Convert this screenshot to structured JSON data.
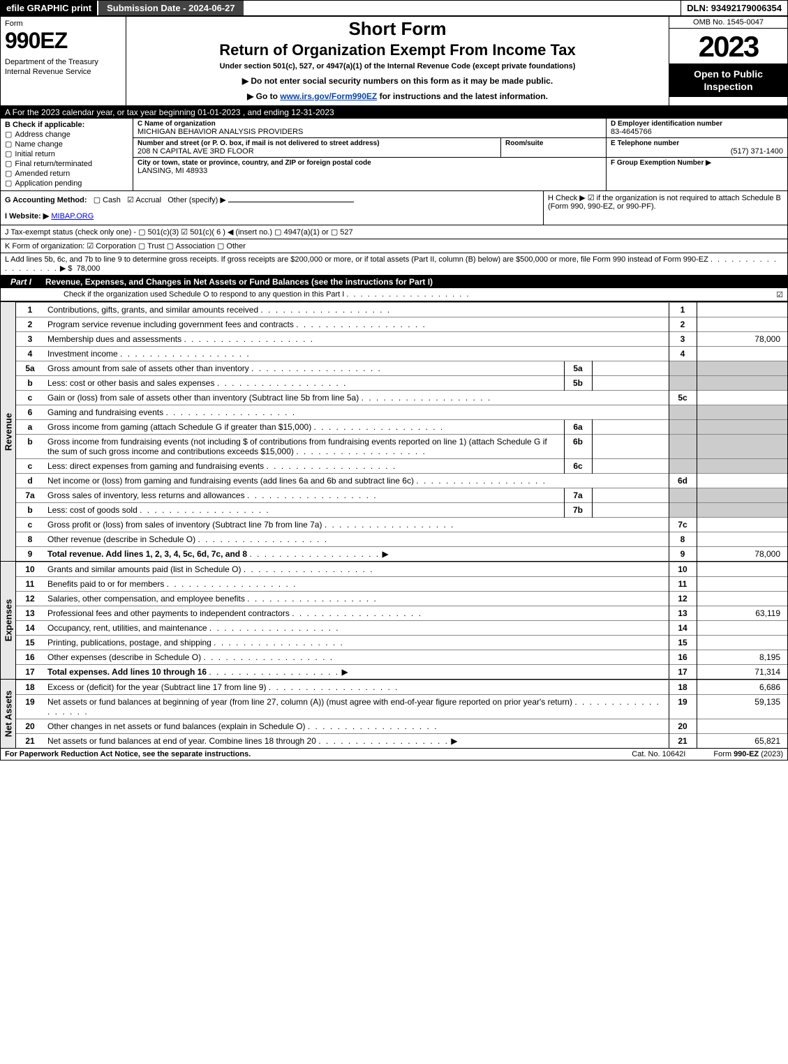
{
  "colors": {
    "black": "#000000",
    "white": "#ffffff",
    "grey_fill": "#cccccc",
    "link": "#0645ad"
  },
  "topbar": {
    "efile": "efile GRAPHIC print",
    "submission": "Submission Date - 2024-06-27",
    "dln": "DLN: 93492179006354"
  },
  "header": {
    "form_word": "Form",
    "form_no": "990EZ",
    "dept": "Department of the Treasury\nInternal Revenue Service",
    "short": "Short Form",
    "title": "Return of Organization Exempt From Income Tax",
    "sub": "Under section 501(c), 527, or 4947(a)(1) of the Internal Revenue Code (except private foundations)",
    "arrow1": "▶ Do not enter social security numbers on this form as it may be made public.",
    "arrow2_pre": "▶ Go to ",
    "arrow2_link": "www.irs.gov/Form990EZ",
    "arrow2_post": " for instructions and the latest information.",
    "omb": "OMB No. 1545-0047",
    "year": "2023",
    "public": "Open to Public Inspection"
  },
  "row_a": "A  For the 2023 calendar year, or tax year beginning 01-01-2023 , and ending 12-31-2023",
  "box_b": {
    "head": "B  Check if applicable:",
    "opts": [
      "Address change",
      "Name change",
      "Initial return",
      "Final return/terminated",
      "Amended return",
      "Application pending"
    ]
  },
  "box_c": {
    "head": "C Name of organization",
    "name": "MICHIGAN BEHAVIOR ANALYSIS PROVIDERS",
    "street_head": "Number and street (or P. O. box, if mail is not delivered to street address)",
    "street": "208 N CAPITAL AVE 3RD FLOOR",
    "room_head": "Room/suite",
    "city_head": "City or town, state or province, country, and ZIP or foreign postal code",
    "city": "LANSING, MI  48933"
  },
  "box_d": {
    "head": "D Employer identification number",
    "val": "83-4645766"
  },
  "box_e": {
    "head": "E Telephone number",
    "val": "(517) 371-1400"
  },
  "box_f": {
    "head": "F Group Exemption Number  ▶",
    "val": ""
  },
  "row_g": {
    "label": "G Accounting Method:",
    "cash": "Cash",
    "accrual": "Accrual",
    "other": "Other (specify) ▶",
    "accrual_checked": true
  },
  "row_h": {
    "text": "H  Check ▶ ☑ if the organization is not required to attach Schedule B (Form 990, 990-EZ, or 990-PF)."
  },
  "row_i": {
    "label": "I Website: ▶",
    "val": "MIBAP.ORG"
  },
  "row_j": "J Tax-exempt status (check only one) -  ▢ 501(c)(3)  ☑ 501(c)( 6 ) ◀ (insert no.)  ▢ 4947(a)(1) or  ▢ 527",
  "row_k": "K Form of organization:  ☑ Corporation  ▢ Trust  ▢ Association  ▢ Other",
  "row_l": {
    "text": "L Add lines 5b, 6c, and 7b to line 9 to determine gross receipts. If gross receipts are $200,000 or more, or if total assets (Part II, column (B) below) are $500,000 or more, file Form 990 instead of Form 990-EZ",
    "arrow": "▶ $",
    "val": "78,000"
  },
  "part1": {
    "name": "Part I",
    "title": "Revenue, Expenses, and Changes in Net Assets or Fund Balances (see the instructions for Part I)",
    "sub": "Check if the organization used Schedule O to respond to any question in this Part I",
    "checked": true
  },
  "sections": {
    "revenue": {
      "label": "Revenue",
      "rows": [
        {
          "ln": "1",
          "desc": "Contributions, gifts, grants, and similar amounts received",
          "no": "1",
          "val": ""
        },
        {
          "ln": "2",
          "desc": "Program service revenue including government fees and contracts",
          "no": "2",
          "val": ""
        },
        {
          "ln": "3",
          "desc": "Membership dues and assessments",
          "no": "3",
          "val": "78,000"
        },
        {
          "ln": "4",
          "desc": "Investment income",
          "no": "4",
          "val": ""
        },
        {
          "ln": "5a",
          "desc": "Gross amount from sale of assets other than inventory",
          "subno": "5a",
          "subval": "",
          "grey": true
        },
        {
          "ln": "b",
          "desc": "Less: cost or other basis and sales expenses",
          "subno": "5b",
          "subval": "",
          "grey": true
        },
        {
          "ln": "c",
          "desc": "Gain or (loss) from sale of assets other than inventory (Subtract line 5b from line 5a)",
          "no": "5c",
          "val": ""
        },
        {
          "ln": "6",
          "desc": "Gaming and fundraising events",
          "grey": true
        },
        {
          "ln": "a",
          "desc": "Gross income from gaming (attach Schedule G if greater than $15,000)",
          "subno": "6a",
          "subval": "",
          "grey": true
        },
        {
          "ln": "b",
          "desc": "Gross income from fundraising events (not including $                     of contributions from fundraising events reported on line 1) (attach Schedule G if the sum of such gross income and contributions exceeds $15,000)",
          "subno": "6b",
          "subval": "",
          "grey": true
        },
        {
          "ln": "c",
          "desc": "Less: direct expenses from gaming and fundraising events",
          "subno": "6c",
          "subval": "",
          "grey": true
        },
        {
          "ln": "d",
          "desc": "Net income or (loss) from gaming and fundraising events (add lines 6a and 6b and subtract line 6c)",
          "no": "6d",
          "val": ""
        },
        {
          "ln": "7a",
          "desc": "Gross sales of inventory, less returns and allowances",
          "subno": "7a",
          "subval": "",
          "grey": true
        },
        {
          "ln": "b",
          "desc": "Less: cost of goods sold",
          "subno": "7b",
          "subval": "",
          "grey": true
        },
        {
          "ln": "c",
          "desc": "Gross profit or (loss) from sales of inventory (Subtract line 7b from line 7a)",
          "no": "7c",
          "val": ""
        },
        {
          "ln": "8",
          "desc": "Other revenue (describe in Schedule O)",
          "no": "8",
          "val": ""
        },
        {
          "ln": "9",
          "desc": "Total revenue. Add lines 1, 2, 3, 4, 5c, 6d, 7c, and 8",
          "no": "9",
          "val": "78,000",
          "bold": true,
          "arrow": true
        }
      ]
    },
    "expenses": {
      "label": "Expenses",
      "rows": [
        {
          "ln": "10",
          "desc": "Grants and similar amounts paid (list in Schedule O)",
          "no": "10",
          "val": ""
        },
        {
          "ln": "11",
          "desc": "Benefits paid to or for members",
          "no": "11",
          "val": ""
        },
        {
          "ln": "12",
          "desc": "Salaries, other compensation, and employee benefits",
          "no": "12",
          "val": ""
        },
        {
          "ln": "13",
          "desc": "Professional fees and other payments to independent contractors",
          "no": "13",
          "val": "63,119"
        },
        {
          "ln": "14",
          "desc": "Occupancy, rent, utilities, and maintenance",
          "no": "14",
          "val": ""
        },
        {
          "ln": "15",
          "desc": "Printing, publications, postage, and shipping",
          "no": "15",
          "val": ""
        },
        {
          "ln": "16",
          "desc": "Other expenses (describe in Schedule O)",
          "no": "16",
          "val": "8,195"
        },
        {
          "ln": "17",
          "desc": "Total expenses. Add lines 10 through 16",
          "no": "17",
          "val": "71,314",
          "bold": true,
          "arrow": true
        }
      ]
    },
    "netassets": {
      "label": "Net Assets",
      "rows": [
        {
          "ln": "18",
          "desc": "Excess or (deficit) for the year (Subtract line 17 from line 9)",
          "no": "18",
          "val": "6,686"
        },
        {
          "ln": "19",
          "desc": "Net assets or fund balances at beginning of year (from line 27, column (A)) (must agree with end-of-year figure reported on prior year's return)",
          "no": "19",
          "val": "59,135"
        },
        {
          "ln": "20",
          "desc": "Other changes in net assets or fund balances (explain in Schedule O)",
          "no": "20",
          "val": ""
        },
        {
          "ln": "21",
          "desc": "Net assets or fund balances at end of year. Combine lines 18 through 20",
          "no": "21",
          "val": "65,821",
          "arrow": true
        }
      ]
    }
  },
  "footer": {
    "pra": "For Paperwork Reduction Act Notice, see the separate instructions.",
    "cat": "Cat. No. 10642I",
    "form": "Form 990-EZ (2023)"
  }
}
